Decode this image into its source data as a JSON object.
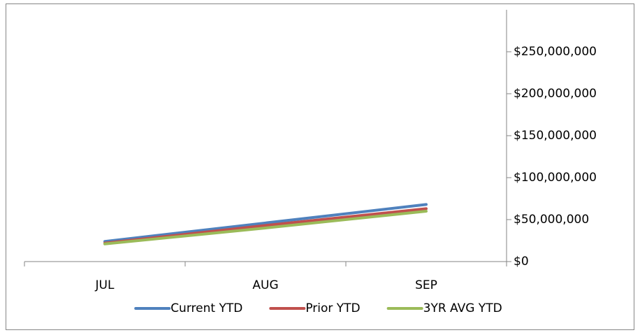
{
  "chart_data": {
    "type": "line",
    "categories": [
      "JUL",
      "AUG",
      "SEP"
    ],
    "series": [
      {
        "name": "Current YTD",
        "color": "#4f81bd",
        "values": [
          24000000,
          46000000,
          68000000
        ]
      },
      {
        "name": "Prior YTD",
        "color": "#c0504d",
        "values": [
          22000000,
          43000000,
          63000000
        ]
      },
      {
        "name": "3YR AVG YTD",
        "color": "#9bbb59",
        "values": [
          21000000,
          40000000,
          60000000
        ]
      }
    ],
    "ylim": [
      0,
      300000000
    ],
    "yticks": [
      {
        "value": 0,
        "label": "$0"
      },
      {
        "value": 50000000,
        "label": "$50,000,000"
      },
      {
        "value": 100000000,
        "label": "$100,000,000"
      },
      {
        "value": 150000000,
        "label": "$150,000,000"
      },
      {
        "value": 200000000,
        "label": "$200,000,000"
      },
      {
        "value": 250000000,
        "label": "$250,000,000"
      }
    ],
    "y_axis_side": "right",
    "legend": "bottom"
  }
}
